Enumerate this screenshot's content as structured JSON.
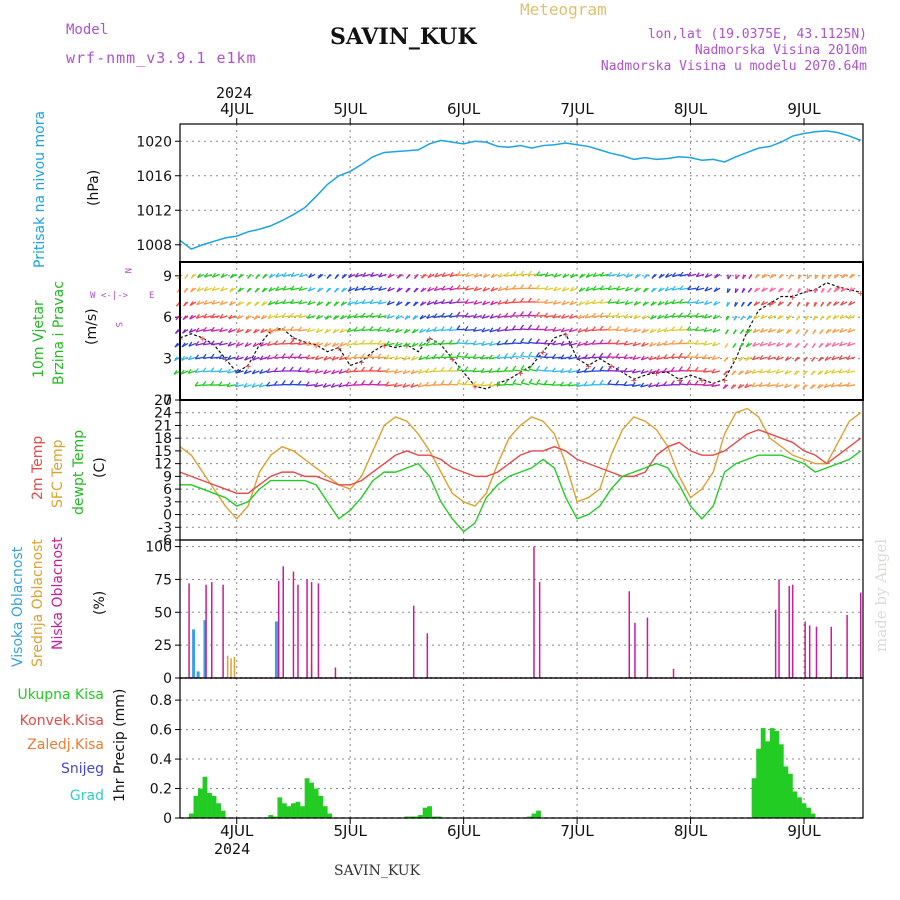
{
  "header": {
    "model_label": "Model",
    "model_name": "wrf-nmm_v3.9.1 e1km",
    "station": "SAVIN_KUK",
    "meteogram_label": "Meteogram",
    "lonlat": "lon,lat (19.0375E, 43.1125N)",
    "altitude": "Nadmorska Visina 2010m",
    "model_altitude": "Nadmorska Visina u modelu 2070.64m",
    "footer_station": "SAVIN_KUK",
    "credit": "made by Angel"
  },
  "time_axis": {
    "year": "2024",
    "day_labels": [
      "4JUL",
      "5JUL",
      "6JUL",
      "7JUL",
      "8JUL",
      "9JUL"
    ],
    "day_values": [
      0,
      1,
      2,
      3,
      4,
      5
    ],
    "range_days": [
      -0.5,
      5.52
    ]
  },
  "colors": {
    "pressure": "#1aa3e8",
    "wind_text": "#22bb22",
    "temp2m": "#e84a4a",
    "sfc_temp": "#e0a030",
    "dewpt": "#22cc22",
    "high_cloud": "#3aa0e0",
    "mid_cloud": "#e0a030",
    "low_cloud": "#cc1a99",
    "total_precip": "#22cc22",
    "conv_precip": "#e84a4a",
    "freezing_precip": "#f07a30",
    "snow": "#4444dd",
    "hail": "#33cccc",
    "purple_text": "#b050d0",
    "gold_text": "#e0c070"
  },
  "chart_data": [
    {
      "type": "line",
      "panel": "pressure",
      "ylabel": "Pritisak na nivou mora",
      "unit": "(hPa)",
      "ylim": [
        1006,
        1022
      ],
      "yticks": [
        1008,
        1012,
        1016,
        1020
      ],
      "grid": true,
      "series": [
        {
          "name": "Pritisak na nivou mora",
          "x": [
            -0.5,
            -0.4,
            -0.3,
            -0.2,
            -0.1,
            0,
            0.1,
            0.2,
            0.3,
            0.4,
            0.5,
            0.6,
            0.7,
            0.8,
            0.9,
            1.0,
            1.1,
            1.2,
            1.3,
            1.4,
            1.5,
            1.6,
            1.7,
            1.8,
            1.9,
            2.0,
            2.1,
            2.2,
            2.3,
            2.4,
            2.5,
            2.6,
            2.7,
            2.8,
            2.9,
            3.0,
            3.1,
            3.2,
            3.3,
            3.4,
            3.5,
            3.6,
            3.7,
            3.8,
            3.9,
            4.0,
            4.1,
            4.2,
            4.3,
            4.4,
            4.5,
            4.6,
            4.7,
            4.8,
            4.9,
            5.0,
            5.1,
            5.2,
            5.3,
            5.4,
            5.5
          ],
          "y": [
            1008.5,
            1007.5,
            1008,
            1008.4,
            1008.8,
            1009,
            1009.5,
            1009.8,
            1010.2,
            1010.8,
            1011.5,
            1012.3,
            1013.6,
            1015,
            1016,
            1016.5,
            1017.3,
            1018.2,
            1018.7,
            1018.8,
            1018.9,
            1019,
            1019.7,
            1020.1,
            1019.9,
            1019.7,
            1020,
            1019.9,
            1019.4,
            1019.3,
            1019.5,
            1019.2,
            1019.5,
            1019.6,
            1019.8,
            1019.6,
            1019.4,
            1019,
            1018.6,
            1018.3,
            1017.9,
            1018.1,
            1017.9,
            1018,
            1018.2,
            1018.1,
            1017.8,
            1017.9,
            1017.6,
            1018.2,
            1018.7,
            1019.2,
            1019.4,
            1019.9,
            1020.6,
            1020.9,
            1021.1,
            1021.2,
            1021.0,
            1020.6,
            1020.1
          ]
        }
      ]
    },
    {
      "type": "line",
      "panel": "wind",
      "ylabel": "10m Vjetar Brzina i Pravac",
      "unit": "(m/s)",
      "direction_key": "W <-|-> E",
      "ylim": [
        0,
        10
      ],
      "yticks": [
        0,
        3,
        6,
        9
      ],
      "grid": true,
      "series": [
        {
          "name": "10m Vjetar Brzina",
          "x": [
            -0.5,
            -0.4,
            -0.3,
            -0.2,
            -0.1,
            0,
            0.1,
            0.2,
            0.3,
            0.4,
            0.5,
            0.6,
            0.7,
            0.8,
            0.9,
            1.0,
            1.1,
            1.2,
            1.3,
            1.4,
            1.5,
            1.6,
            1.7,
            1.8,
            1.9,
            2.0,
            2.1,
            2.2,
            2.3,
            2.4,
            2.5,
            2.6,
            2.7,
            2.8,
            2.9,
            3.0,
            3.1,
            3.2,
            3.3,
            3.4,
            3.5,
            3.6,
            3.7,
            3.8,
            3.9,
            4.0,
            4.1,
            4.2,
            4.3,
            4.4,
            4.5,
            4.6,
            4.7,
            4.8,
            4.9,
            5.0,
            5.1,
            5.2,
            5.3,
            5.4,
            5.5
          ],
          "y": [
            4.5,
            4.8,
            4.5,
            4.0,
            3.0,
            2.0,
            2.5,
            4.0,
            5.0,
            5.2,
            4.5,
            4.2,
            4.0,
            3.5,
            3.8,
            2.5,
            2.8,
            3.5,
            4.0,
            3.8,
            4.0,
            3.5,
            4.5,
            4.0,
            3.0,
            2.0,
            1.0,
            0.8,
            1.2,
            1.5,
            2.0,
            2.5,
            3.5,
            4.5,
            4.8,
            3.0,
            2.5,
            3.0,
            2.5,
            2.0,
            1.5,
            1.8,
            2.0,
            2.0,
            1.5,
            1.8,
            1.5,
            1.2,
            1.5,
            3.0,
            5.0,
            6.5,
            7.0,
            7.5,
            7.5,
            7.8,
            8.0,
            8.5,
            8.2,
            8.0,
            7.8
          ]
        }
      ]
    },
    {
      "type": "line",
      "panel": "temperature",
      "ylabel": "2m Temp",
      "ylabel2": "SFC Temp",
      "ylabel3": "dewpt Temp",
      "unit": "(C)",
      "ylim": [
        -6,
        27
      ],
      "yticks": [
        -6,
        -3,
        0,
        3,
        6,
        9,
        12,
        15,
        18,
        21,
        24,
        27
      ],
      "grid": true,
      "series": [
        {
          "name": "2m Temp",
          "x": [
            -0.5,
            -0.4,
            -0.3,
            -0.2,
            -0.1,
            0,
            0.1,
            0.2,
            0.3,
            0.4,
            0.5,
            0.6,
            0.7,
            0.8,
            0.9,
            1.0,
            1.1,
            1.2,
            1.3,
            1.4,
            1.5,
            1.6,
            1.7,
            1.8,
            1.9,
            2.0,
            2.1,
            2.2,
            2.3,
            2.4,
            2.5,
            2.6,
            2.7,
            2.8,
            2.9,
            3.0,
            3.1,
            3.2,
            3.3,
            3.4,
            3.5,
            3.6,
            3.7,
            3.8,
            3.9,
            4.0,
            4.1,
            4.2,
            4.3,
            4.4,
            4.5,
            4.6,
            4.7,
            4.8,
            4.9,
            5.0,
            5.1,
            5.2,
            5.3,
            5.4,
            5.5
          ],
          "y": [
            10,
            9,
            8,
            7,
            6,
            5,
            5,
            7,
            9,
            10,
            10,
            9,
            9,
            8,
            7,
            7,
            8,
            10,
            12,
            14,
            15,
            14,
            14,
            13,
            11,
            10,
            9,
            9,
            10,
            12,
            14,
            15,
            15,
            16,
            15,
            13,
            12,
            11,
            10,
            9,
            9,
            10,
            14,
            16,
            17,
            15,
            14,
            14,
            15,
            17,
            19,
            20,
            19,
            18,
            17,
            15,
            14,
            12,
            14,
            16,
            18
          ]
        },
        {
          "name": "SFC Temp",
          "x": [
            -0.5,
            -0.4,
            -0.3,
            -0.2,
            -0.1,
            0,
            0.1,
            0.2,
            0.3,
            0.4,
            0.5,
            0.6,
            0.7,
            0.8,
            0.9,
            1.0,
            1.1,
            1.2,
            1.3,
            1.4,
            1.5,
            1.6,
            1.7,
            1.8,
            1.9,
            2.0,
            2.1,
            2.2,
            2.3,
            2.4,
            2.5,
            2.6,
            2.7,
            2.8,
            2.9,
            3.0,
            3.1,
            3.2,
            3.3,
            3.4,
            3.5,
            3.6,
            3.7,
            3.8,
            3.9,
            4.0,
            4.1,
            4.2,
            4.3,
            4.4,
            4.5,
            4.6,
            4.7,
            4.8,
            4.9,
            5.0,
            5.1,
            5.2,
            5.3,
            5.4,
            5.5
          ],
          "y": [
            16,
            14,
            10,
            6,
            2,
            -1,
            2,
            10,
            14,
            16,
            15,
            13,
            11,
            9,
            7,
            6,
            9,
            15,
            21,
            23,
            22,
            19,
            15,
            10,
            5,
            3,
            2,
            5,
            12,
            18,
            21,
            23,
            22,
            19,
            12,
            3,
            4,
            6,
            14,
            20,
            23,
            22,
            20,
            16,
            9,
            4,
            6,
            10,
            19,
            24,
            25,
            23,
            18,
            16,
            14,
            13,
            12,
            12,
            17,
            22,
            24
          ]
        },
        {
          "name": "dewpt Temp",
          "x": [
            -0.5,
            -0.4,
            -0.3,
            -0.2,
            -0.1,
            0,
            0.1,
            0.2,
            0.3,
            0.4,
            0.5,
            0.6,
            0.7,
            0.8,
            0.9,
            1.0,
            1.1,
            1.2,
            1.3,
            1.4,
            1.5,
            1.6,
            1.7,
            1.8,
            1.9,
            2.0,
            2.1,
            2.2,
            2.3,
            2.4,
            2.5,
            2.6,
            2.7,
            2.8,
            2.9,
            3.0,
            3.1,
            3.2,
            3.3,
            3.4,
            3.5,
            3.6,
            3.7,
            3.8,
            3.9,
            4.0,
            4.1,
            4.2,
            4.3,
            4.4,
            4.5,
            4.6,
            4.7,
            4.8,
            4.9,
            5.0,
            5.1,
            5.2,
            5.3,
            5.4,
            5.5
          ],
          "y": [
            7,
            7,
            6,
            5,
            4,
            2,
            3,
            6,
            8,
            8,
            8,
            8,
            7,
            3,
            -1,
            1,
            4,
            8,
            10,
            10,
            11,
            12,
            9,
            3,
            -1,
            -4,
            -2,
            4,
            7,
            9,
            10,
            11,
            13,
            11,
            4,
            -1,
            0,
            2,
            6,
            9,
            10,
            11,
            12,
            11,
            7,
            2,
            -1,
            2,
            10,
            12,
            13,
            14,
            14,
            14,
            13,
            12,
            10,
            11,
            12,
            13,
            15
          ]
        }
      ]
    },
    {
      "type": "bar",
      "panel": "cloud",
      "ylabel": "Visoka Oblacnost",
      "ylabel2": "Srednja Oblacnost",
      "ylabel3": "Niska Oblacnost",
      "unit": "(%)",
      "ylim": [
        0,
        105
      ],
      "yticks": [
        0,
        25,
        50,
        75,
        100
      ],
      "grid": true,
      "series": [
        {
          "name": "Visoka Oblacnost",
          "x": [
            -0.38,
            -0.34,
            -0.28,
            0.35
          ],
          "values": [
            37,
            5,
            44,
            43
          ]
        },
        {
          "name": "Srednja Oblacnost",
          "x": [
            -0.08,
            -0.05,
            -0.02,
            0.66
          ],
          "values": [
            17,
            15,
            16,
            10
          ]
        },
        {
          "name": "Niska Oblacnost",
          "x": [
            -0.42,
            -0.27,
            -0.22,
            -0.12,
            0.37,
            0.41,
            0.5,
            0.54,
            0.62,
            0.66,
            0.72,
            0.87,
            1.56,
            1.68,
            2.62,
            2.67,
            3.46,
            3.51,
            3.62,
            3.85,
            4.75,
            4.78,
            4.87,
            4.9,
            5.01,
            5.05,
            5.11,
            5.24,
            5.38,
            5.5
          ],
          "values": [
            72,
            71,
            73,
            71,
            74,
            85,
            81,
            71,
            75,
            73,
            72,
            8,
            55,
            34,
            100,
            73,
            66,
            42,
            46,
            7,
            52,
            75,
            70,
            71,
            43,
            40,
            39,
            39,
            48,
            65
          ]
        }
      ]
    },
    {
      "type": "bar",
      "panel": "precip",
      "ylabel": "1hr Precip",
      "unit": "(mm)",
      "legend": [
        "Ukupna Kisa",
        "Konvek.Kisa",
        "Zaledj.Kisa",
        "Snijeg",
        "Grad"
      ],
      "ylim": [
        0,
        0.95
      ],
      "yticks": [
        0,
        0.2,
        0.4,
        0.6,
        0.8
      ],
      "grid": true,
      "series": [
        {
          "name": "Ukupna Kisa",
          "x": [
            -0.4,
            -0.36,
            -0.32,
            -0.28,
            -0.24,
            -0.2,
            -0.16,
            -0.12,
            0.3,
            0.34,
            0.38,
            0.42,
            0.46,
            0.5,
            0.54,
            0.58,
            0.62,
            0.66,
            0.7,
            0.74,
            0.78,
            0.82,
            1.5,
            1.54,
            1.58,
            1.62,
            1.66,
            1.7,
            1.74,
            1.78,
            2.58,
            2.62,
            2.66,
            4.56,
            4.6,
            4.64,
            4.68,
            4.72,
            4.76,
            4.8,
            4.84,
            4.88,
            4.92,
            4.96,
            5.0,
            5.04,
            5.08
          ],
          "values": [
            0.03,
            0.15,
            0.2,
            0.28,
            0.17,
            0.15,
            0.1,
            0.05,
            0.02,
            0.01,
            0.14,
            0.1,
            0.08,
            0.1,
            0.11,
            0.08,
            0.27,
            0.24,
            0.2,
            0.15,
            0.08,
            0.03,
            0.01,
            0.01,
            0.01,
            0.02,
            0.07,
            0.08,
            0.01,
            0.01,
            0.01,
            0.03,
            0.05,
            0.27,
            0.47,
            0.61,
            0.52,
            0.61,
            0.59,
            0.5,
            0.35,
            0.3,
            0.18,
            0.14,
            0.1,
            0.07,
            0.03
          ]
        }
      ]
    }
  ]
}
